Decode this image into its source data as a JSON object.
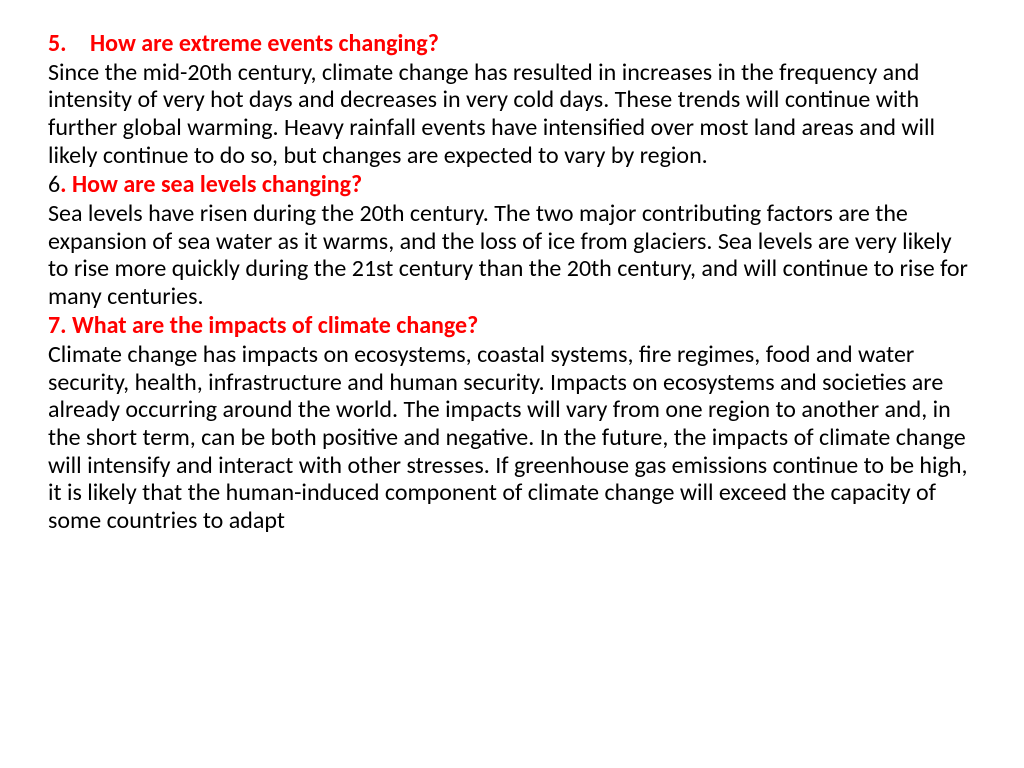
{
  "colors": {
    "heading": "#ff0000",
    "body": "#000000",
    "background": "#ffffff"
  },
  "typography": {
    "font_family": "Calibri",
    "heading_fontsize": 24,
    "heading_weight": 700,
    "body_fontsize": 24,
    "body_weight": 400,
    "line_height": 1.15
  },
  "sections": [
    {
      "number": "5.",
      "number_red": true,
      "title": "How are extreme events changing?",
      "body": "Since the mid-20th century, climate change has resulted in increases in the frequency and intensity of very hot days and decreases in very cold days. These trends will continue with further global warming. Heavy rainfall events have intensified over most land areas and will likely continue to do so, but changes are expected to vary by region."
    },
    {
      "number": "6",
      "number_red": false,
      "title_prefix": ". ",
      "title": "How are sea levels changing?",
      "body": "Sea levels have risen during the 20th century. The two major contributing factors are the expansion of sea water as it warms, and the loss of ice from glaciers. Sea levels are very likely to rise more quickly during the 21st century than the 20th century, and will continue to rise for many centuries."
    },
    {
      "number": "7.",
      "number_red": true,
      "title_prefix": " ",
      "title": "What are the impacts of climate change?",
      "body": "Climate change has impacts on ecosystems, coastal systems, fire regimes, food and water security, health, infrastructure and human security. Impacts on ecosystems and societies are already occurring around the world. The impacts will vary from one region to another and, in the short term, can be both positive and negative. In the future, the impacts of climate change will intensify and interact with other stresses. If greenhouse gas emissions continue to be high, it is likely that the human-induced component of climate change will exceed the capacity of some countries to adapt"
    }
  ]
}
